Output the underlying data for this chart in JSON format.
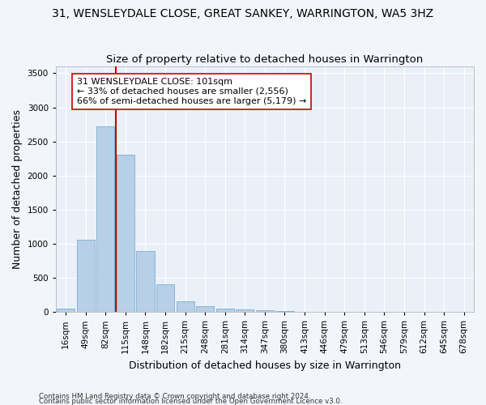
{
  "title": "31, WENSLEYDALE CLOSE, GREAT SANKEY, WARRINGTON, WA5 3HZ",
  "subtitle": "Size of property relative to detached houses in Warrington",
  "xlabel": "Distribution of detached houses by size in Warrington",
  "ylabel": "Number of detached properties",
  "categories": [
    "16sqm",
    "49sqm",
    "82sqm",
    "115sqm",
    "148sqm",
    "182sqm",
    "215sqm",
    "248sqm",
    "281sqm",
    "314sqm",
    "347sqm",
    "380sqm",
    "413sqm",
    "446sqm",
    "479sqm",
    "513sqm",
    "546sqm",
    "579sqm",
    "612sqm",
    "645sqm",
    "678sqm"
  ],
  "values": [
    50,
    1060,
    2720,
    2300,
    890,
    400,
    160,
    85,
    50,
    35,
    20,
    8,
    5,
    3,
    2,
    1,
    0,
    0,
    0,
    0,
    0
  ],
  "bar_color": "#b8cfe8",
  "bar_edge_color": "#7aaed4",
  "vline_color": "#cc0000",
  "annotation_text": "31 WENSLEYDALE CLOSE: 101sqm\n← 33% of detached houses are smaller (2,556)\n66% of semi-detached houses are larger (5,179) →",
  "annotation_box_color": "white",
  "annotation_box_edge": "#cc0000",
  "ylim": [
    0,
    3600
  ],
  "yticks": [
    0,
    500,
    1000,
    1500,
    2000,
    2500,
    3000,
    3500
  ],
  "bg_color": "#f2f5fb",
  "plot_bg": "#eaf0f8",
  "footer1": "Contains HM Land Registry data © Crown copyright and database right 2024.",
  "footer2": "Contains public sector information licensed under the Open Government Licence v3.0.",
  "title_fontsize": 10,
  "subtitle_fontsize": 9.5,
  "label_fontsize": 9,
  "tick_fontsize": 7.5,
  "annotation_fontsize": 8
}
